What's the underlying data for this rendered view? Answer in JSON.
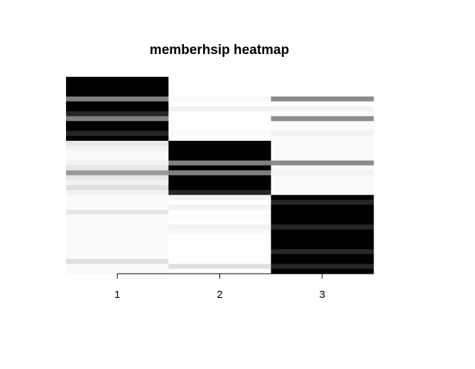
{
  "chart_data": {
    "type": "heatmap",
    "title": "memberhsip heatmap",
    "xlabel": "",
    "ylabel": "",
    "x_categories": [
      "1",
      "2",
      "3"
    ],
    "x_tick_labels": [
      "1",
      "2",
      "3"
    ],
    "row_count": 40,
    "value_range": [
      0,
      1
    ],
    "color_scale": {
      "low": "#ffffff",
      "high": "#000000"
    },
    "grid": false,
    "legend": "none",
    "columns": [
      {
        "name": "1",
        "values": [
          1,
          1,
          1,
          1,
          0.5,
          1,
          1,
          0.85,
          0.5,
          1,
          1,
          0.85,
          1,
          0.1,
          0.05,
          0.02,
          0.02,
          0.05,
          0.1,
          0.4,
          0.1,
          0.05,
          0.12,
          0.05,
          0.02,
          0.02,
          0.02,
          0.1,
          0.02,
          0.02,
          0.02,
          0.02,
          0.02,
          0.02,
          0.02,
          0.02,
          0.02,
          0.12,
          0.02,
          0.02
        ]
      },
      {
        "name": "2",
        "values": [
          0,
          0,
          0,
          0,
          0.02,
          0,
          0.05,
          0,
          0,
          0,
          0,
          0.02,
          0,
          1,
          1,
          1,
          1,
          0.5,
          1,
          0.5,
          1,
          1,
          1,
          0.85,
          0.05,
          0,
          0.05,
          0,
          0.02,
          0,
          0.05,
          0.02,
          0,
          0,
          0,
          0,
          0,
          0,
          0.12,
          0
        ]
      },
      {
        "name": "3",
        "values": [
          0,
          0,
          0,
          0,
          0.45,
          0,
          0.05,
          0.02,
          0.45,
          0.02,
          0.02,
          0.05,
          0.02,
          0.02,
          0.02,
          0.02,
          0.02,
          0.45,
          0.02,
          0.05,
          0.02,
          0.02,
          0.02,
          0.02,
          1,
          0.85,
          1,
          1,
          1,
          1,
          0.85,
          1,
          1,
          1,
          1,
          0.85,
          1,
          1,
          0.85,
          1
        ]
      }
    ]
  }
}
